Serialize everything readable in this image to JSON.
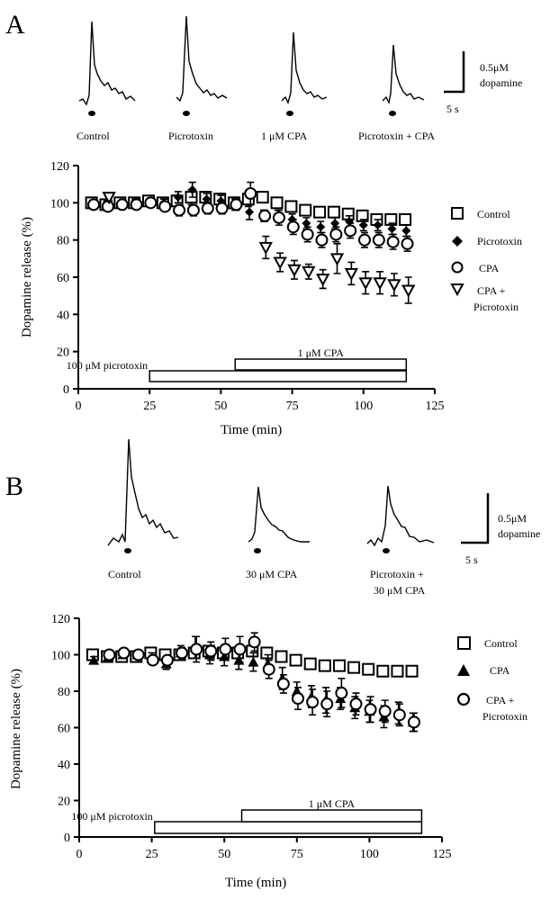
{
  "panels": [
    {
      "letter": "A",
      "trace_labels": [
        "Control",
        "Picrotoxin",
        "1 μM CPA",
        "Picrotoxin + CPA"
      ],
      "scale_bar": {
        "amplitude": "0.5μM",
        "unit": "dopamine",
        "time": "5 s"
      },
      "bars": {
        "picrotoxin": "100 μM picrotoxin",
        "cpa": "1 μM CPA"
      }
    },
    {
      "letter": "B",
      "trace_labels": [
        "Control",
        "30 μM  CPA",
        "Picrotoxin +\n30 μM  CPA"
      ],
      "scale_bar": {
        "amplitude": "0.5μM",
        "unit": "dopamine",
        "time": "5 s"
      },
      "bars": {
        "picrotoxin": "100 μM picrotoxin",
        "cpa": "1 μM CPA"
      }
    }
  ],
  "chart_data": [
    {
      "type": "scatter",
      "panel": "A",
      "xlabel": "Time (min)",
      "ylabel": "Dopamine release  (%)",
      "xlim": [
        0,
        125
      ],
      "ylim": [
        0,
        120
      ],
      "xticks": [
        0,
        25,
        50,
        75,
        100,
        125
      ],
      "yticks": [
        0,
        20,
        40,
        60,
        80,
        100,
        120
      ],
      "legend": "right",
      "drug_bars": [
        {
          "label": "100 μM picrotoxin",
          "start": 25,
          "end": 115
        },
        {
          "label": "1 μM CPA",
          "start": 55,
          "end": 115
        }
      ],
      "series": [
        {
          "name": "Control",
          "marker": "square-open",
          "x": [
            5,
            10,
            15,
            20,
            25,
            30,
            35,
            40,
            45,
            50,
            55,
            60,
            65,
            70,
            75,
            80,
            85,
            90,
            95,
            100,
            105,
            110,
            115
          ],
          "y": [
            100,
            99,
            100,
            100,
            101,
            100,
            101,
            103,
            103,
            102,
            100,
            102,
            103,
            100,
            98,
            96,
            95,
            95,
            94,
            93,
            91,
            91,
            91
          ],
          "err": [
            1,
            2,
            1,
            1,
            2,
            2,
            3,
            4,
            3,
            3,
            3,
            4,
            2,
            2,
            2,
            2,
            2,
            2,
            2,
            2,
            2,
            2,
            2
          ]
        },
        {
          "name": "Picrotoxin",
          "marker": "diamond-filled",
          "x": [
            5,
            10,
            15,
            20,
            25,
            30,
            35,
            40,
            45,
            50,
            55,
            60,
            65,
            70,
            75,
            80,
            85,
            90,
            95,
            100,
            105,
            110,
            115
          ],
          "y": [
            99,
            100,
            99,
            101,
            100,
            100,
            103,
            107,
            102,
            101,
            99,
            95,
            93,
            93,
            91,
            89,
            87,
            89,
            90,
            88,
            88,
            86,
            85
          ],
          "err": [
            1,
            1,
            1,
            1,
            2,
            2,
            3,
            4,
            3,
            3,
            3,
            4,
            3,
            3,
            3,
            3,
            3,
            3,
            3,
            3,
            3,
            3,
            3
          ]
        },
        {
          "name": "CPA",
          "marker": "circle-open",
          "x": [
            5,
            10,
            15,
            20,
            25,
            30,
            35,
            40,
            45,
            50,
            55,
            60,
            65,
            70,
            75,
            80,
            85,
            90,
            95,
            100,
            105,
            110,
            115
          ],
          "y": [
            99,
            98,
            99,
            99,
            100,
            98,
            96,
            96,
            97,
            97,
            99,
            105,
            93,
            92,
            87,
            83,
            80,
            83,
            85,
            80,
            80,
            79,
            78
          ],
          "err": [
            1,
            1,
            1,
            1,
            2,
            2,
            3,
            3,
            3,
            3,
            3,
            6,
            3,
            4,
            4,
            4,
            4,
            4,
            4,
            4,
            4,
            4,
            4
          ]
        },
        {
          "name": "CPA + Picrotoxin",
          "marker": "triangle-down-open",
          "x": [
            10,
            65,
            70,
            75,
            80,
            85,
            90,
            95,
            100,
            105,
            110,
            115
          ],
          "y": [
            103,
            76,
            68,
            64,
            63,
            59,
            70,
            62,
            57,
            57,
            56,
            53
          ],
          "err": [
            2,
            6,
            5,
            5,
            4,
            5,
            8,
            6,
            6,
            6,
            6,
            7
          ]
        }
      ]
    },
    {
      "type": "scatter",
      "panel": "B",
      "xlabel": "Time (min)",
      "ylabel": "Dopamine release  (%)",
      "xlim": [
        0,
        125
      ],
      "ylim": [
        0,
        120
      ],
      "xticks": [
        0,
        25,
        50,
        75,
        100,
        125
      ],
      "yticks": [
        0,
        20,
        40,
        60,
        80,
        100,
        120
      ],
      "legend": "right",
      "drug_bars": [
        {
          "label": "100 μM picrotoxin",
          "start": 26,
          "end": 118
        },
        {
          "label": "1 μM CPA",
          "start": 56,
          "end": 118
        }
      ],
      "series": [
        {
          "name": "Control",
          "marker": "square-open",
          "x": [
            5,
            10,
            15,
            20,
            25,
            30,
            35,
            40,
            45,
            50,
            55,
            60,
            65,
            70,
            75,
            80,
            85,
            90,
            95,
            100,
            105,
            110,
            115
          ],
          "y": [
            100,
            99,
            99,
            99,
            101,
            100,
            100,
            101,
            102,
            101,
            101,
            102,
            101,
            99,
            97,
            95,
            94,
            94,
            93,
            92,
            91,
            91,
            91
          ],
          "err": [
            2,
            2,
            2,
            2,
            2,
            2,
            3,
            3,
            3,
            3,
            3,
            3,
            2,
            2,
            2,
            2,
            2,
            2,
            2,
            2,
            2,
            2,
            2
          ]
        },
        {
          "name": "CPA",
          "marker": "triangle-filled",
          "x": [
            5,
            10,
            15,
            20,
            25,
            30,
            35,
            40,
            45,
            50,
            55,
            60,
            65,
            70,
            75,
            80,
            85,
            90,
            95,
            100,
            105,
            110,
            115
          ],
          "y": [
            97,
            99,
            100,
            100,
            98,
            95,
            101,
            104,
            100,
            99,
            97,
            96,
            95,
            87,
            80,
            77,
            75,
            76,
            71,
            69,
            66,
            68,
            63
          ],
          "err": [
            2,
            2,
            2,
            2,
            3,
            3,
            4,
            6,
            5,
            5,
            5,
            5,
            5,
            6,
            5,
            6,
            7,
            6,
            6,
            6,
            6,
            6,
            5
          ]
        },
        {
          "name": "CPA + Picrotoxin",
          "marker": "circle-open",
          "x": [
            10,
            15,
            20,
            25,
            30,
            35,
            40,
            45,
            50,
            55,
            60,
            65,
            70,
            75,
            80,
            85,
            90,
            95,
            100,
            105,
            110,
            115
          ],
          "y": [
            100,
            101,
            100,
            97,
            97,
            101,
            103,
            102,
            103,
            103,
            107,
            92,
            84,
            76,
            74,
            73,
            79,
            73,
            70,
            69,
            67,
            63
          ],
          "err": [
            1,
            1,
            1,
            2,
            2,
            3,
            7,
            5,
            6,
            7,
            5,
            5,
            5,
            6,
            7,
            7,
            8,
            6,
            7,
            6,
            6,
            5
          ]
        }
      ]
    }
  ]
}
